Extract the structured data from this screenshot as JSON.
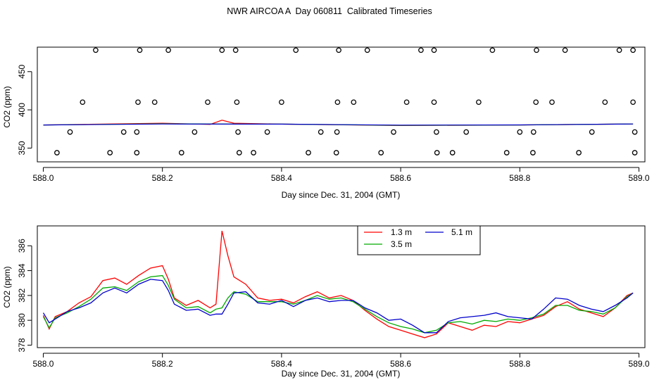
{
  "title": "NWR AIRCOA A  Day 060811  Calibrated Timeseries",
  "chart_data": [
    {
      "type": "scatter",
      "xlabel": "Day since Dec. 31, 2004 (GMT)",
      "ylabel": "CO2 (ppm)",
      "xlim": [
        587.99,
        589.01
      ],
      "ylim": [
        332,
        482
      ],
      "xticks": [
        588.0,
        588.2,
        588.4,
        588.6,
        588.8,
        589.0
      ],
      "xtick_labels": [
        "588.0",
        "588.2",
        "588.4",
        "588.6",
        "588.8",
        "589.0"
      ],
      "yticks": [
        350,
        400,
        450
      ],
      "ytick_labels": [
        "350",
        "400",
        "450"
      ],
      "calibration_points": {
        "x": [
          588.088,
          588.162,
          588.21,
          588.3,
          588.323,
          588.424,
          588.496,
          588.544,
          588.634,
          588.656,
          588.754,
          588.828,
          588.876,
          588.967,
          588.99,
          588.066,
          588.159,
          588.187,
          588.276,
          588.325,
          588.4,
          588.494,
          588.521,
          588.61,
          588.656,
          588.731,
          588.827,
          588.854,
          588.943,
          588.99,
          588.045,
          588.135,
          588.157,
          588.254,
          588.327,
          588.376,
          588.466,
          588.493,
          588.588,
          588.66,
          588.71,
          588.8,
          588.823,
          588.921,
          588.993,
          588.023,
          588.112,
          588.157,
          588.232,
          588.329,
          588.353,
          588.445,
          588.492,
          588.567,
          588.661,
          588.687,
          588.778,
          588.822,
          588.899,
          588.993
        ],
        "y": [
          478,
          478,
          478,
          478,
          478,
          478,
          478,
          478,
          478,
          478,
          478,
          478,
          478,
          478,
          478,
          410,
          410,
          410,
          410,
          410,
          410,
          410,
          410,
          410,
          410,
          410,
          410,
          410,
          410,
          410,
          371,
          371,
          371,
          371,
          371,
          371,
          371,
          371,
          371,
          371,
          371,
          371,
          371,
          371,
          371,
          344,
          344,
          344,
          344,
          344,
          344,
          344,
          344,
          344,
          344,
          344,
          344,
          344,
          344,
          344
        ]
      },
      "series": [
        {
          "name": "1.3 m",
          "color": "#ff0000",
          "x": [
            588.0,
            588.2,
            588.28,
            588.3,
            588.32,
            588.4,
            588.6,
            588.8,
            588.99
          ],
          "y": [
            380.2,
            382.5,
            381.0,
            386.5,
            382.5,
            381.3,
            379.5,
            380.2,
            381.5
          ]
        },
        {
          "name": "3.5 m",
          "color": "#00aa00",
          "x": [
            588.0,
            588.2,
            588.4,
            588.6,
            588.8,
            588.99
          ],
          "y": [
            380.2,
            381.8,
            381.3,
            379.8,
            380.2,
            381.5
          ]
        },
        {
          "name": "5.1 m",
          "color": "#0000cc",
          "x": [
            588.0,
            588.2,
            588.4,
            588.6,
            588.8,
            588.99
          ],
          "y": [
            380.2,
            381.5,
            381.3,
            380.0,
            380.3,
            381.5
          ]
        }
      ]
    },
    {
      "type": "line",
      "xlabel": "Day since Dec. 31, 2004 (GMT)",
      "ylabel": "CO2 (ppm)",
      "xlim": [
        587.99,
        589.01
      ],
      "ylim": [
        377.8,
        387.6
      ],
      "xticks": [
        588.0,
        588.2,
        588.4,
        588.6,
        588.8,
        589.0
      ],
      "xtick_labels": [
        "588.0",
        "588.2",
        "588.4",
        "588.6",
        "588.8",
        "589.0"
      ],
      "yticks": [
        378,
        380,
        382,
        384,
        386
      ],
      "ytick_labels": [
        "378",
        "380",
        "382",
        "384",
        "386"
      ],
      "legend": {
        "position": "top-right",
        "entries": [
          "1.3 m",
          "3.5 m",
          "5.1 m"
        ]
      },
      "series": [
        {
          "name": "1.3 m",
          "color": "#ff0000",
          "points": [
            [
              588.0,
              380.4
            ],
            [
              588.01,
              379.3
            ],
            [
              588.02,
              380.3
            ],
            [
              588.04,
              380.7
            ],
            [
              588.06,
              381.4
            ],
            [
              588.08,
              381.9
            ],
            [
              588.1,
              383.2
            ],
            [
              588.12,
              383.4
            ],
            [
              588.14,
              382.9
            ],
            [
              588.16,
              383.6
            ],
            [
              588.18,
              384.2
            ],
            [
              588.2,
              384.4
            ],
            [
              588.21,
              383.3
            ],
            [
              588.22,
              381.8
            ],
            [
              588.24,
              381.2
            ],
            [
              588.26,
              381.6
            ],
            [
              588.28,
              381.0
            ],
            [
              588.29,
              381.3
            ],
            [
              588.3,
              387.2
            ],
            [
              588.31,
              385.2
            ],
            [
              588.32,
              383.5
            ],
            [
              588.34,
              382.9
            ],
            [
              588.36,
              381.8
            ],
            [
              588.38,
              381.6
            ],
            [
              588.4,
              381.7
            ],
            [
              588.42,
              381.4
            ],
            [
              588.44,
              381.9
            ],
            [
              588.46,
              382.3
            ],
            [
              588.48,
              381.8
            ],
            [
              588.5,
              382.0
            ],
            [
              588.52,
              381.6
            ],
            [
              588.54,
              380.8
            ],
            [
              588.56,
              380.1
            ],
            [
              588.58,
              379.5
            ],
            [
              588.6,
              379.2
            ],
            [
              588.62,
              378.9
            ],
            [
              588.64,
              378.6
            ],
            [
              588.66,
              378.9
            ],
            [
              588.68,
              379.8
            ],
            [
              588.7,
              379.5
            ],
            [
              588.72,
              379.2
            ],
            [
              588.74,
              379.6
            ],
            [
              588.76,
              379.5
            ],
            [
              588.78,
              379.9
            ],
            [
              588.8,
              379.8
            ],
            [
              588.82,
              380.1
            ],
            [
              588.84,
              380.4
            ],
            [
              588.86,
              381.1
            ],
            [
              588.88,
              381.5
            ],
            [
              588.9,
              380.9
            ],
            [
              588.92,
              380.6
            ],
            [
              588.94,
              380.3
            ],
            [
              588.96,
              381.0
            ],
            [
              588.98,
              382.0
            ],
            [
              588.99,
              382.2
            ]
          ]
        },
        {
          "name": "3.5 m",
          "color": "#00aa00",
          "points": [
            [
              588.0,
              380.3
            ],
            [
              588.01,
              379.4
            ],
            [
              588.02,
              380.2
            ],
            [
              588.04,
              380.6
            ],
            [
              588.06,
              381.1
            ],
            [
              588.08,
              381.7
            ],
            [
              588.1,
              382.6
            ],
            [
              588.12,
              382.7
            ],
            [
              588.14,
              382.4
            ],
            [
              588.16,
              383.1
            ],
            [
              588.18,
              383.5
            ],
            [
              588.2,
              383.6
            ],
            [
              588.21,
              382.8
            ],
            [
              588.22,
              381.7
            ],
            [
              588.24,
              381.0
            ],
            [
              588.26,
              381.1
            ],
            [
              588.28,
              380.6
            ],
            [
              588.29,
              380.9
            ],
            [
              588.3,
              381.0
            ],
            [
              588.31,
              381.8
            ],
            [
              588.32,
              382.3
            ],
            [
              588.34,
              382.1
            ],
            [
              588.36,
              381.5
            ],
            [
              588.38,
              381.5
            ],
            [
              588.4,
              381.5
            ],
            [
              588.42,
              381.3
            ],
            [
              588.44,
              381.6
            ],
            [
              588.46,
              382.0
            ],
            [
              588.48,
              381.7
            ],
            [
              588.5,
              381.8
            ],
            [
              588.52,
              381.5
            ],
            [
              588.54,
              380.9
            ],
            [
              588.56,
              380.3
            ],
            [
              588.58,
              379.8
            ],
            [
              588.6,
              379.5
            ],
            [
              588.62,
              379.3
            ],
            [
              588.64,
              379.0
            ],
            [
              588.66,
              379.2
            ],
            [
              588.68,
              379.8
            ],
            [
              588.7,
              379.9
            ],
            [
              588.72,
              379.7
            ],
            [
              588.74,
              380.0
            ],
            [
              588.76,
              379.9
            ],
            [
              588.78,
              380.1
            ],
            [
              588.8,
              380.0
            ],
            [
              588.82,
              380.2
            ],
            [
              588.84,
              380.5
            ],
            [
              588.86,
              381.2
            ],
            [
              588.88,
              381.2
            ],
            [
              588.9,
              380.8
            ],
            [
              588.92,
              380.7
            ],
            [
              588.94,
              380.5
            ],
            [
              588.96,
              381.0
            ],
            [
              588.98,
              381.9
            ],
            [
              588.99,
              382.2
            ]
          ]
        },
        {
          "name": "5.1 m",
          "color": "#0000cc",
          "points": [
            [
              588.0,
              380.6
            ],
            [
              588.01,
              379.8
            ],
            [
              588.02,
              380.1
            ],
            [
              588.04,
              380.7
            ],
            [
              588.06,
              381.0
            ],
            [
              588.08,
              381.4
            ],
            [
              588.1,
              382.2
            ],
            [
              588.12,
              382.6
            ],
            [
              588.14,
              382.2
            ],
            [
              588.16,
              382.9
            ],
            [
              588.18,
              383.3
            ],
            [
              588.2,
              383.2
            ],
            [
              588.21,
              382.4
            ],
            [
              588.22,
              381.3
            ],
            [
              588.24,
              380.8
            ],
            [
              588.26,
              380.9
            ],
            [
              588.28,
              380.4
            ],
            [
              588.29,
              380.5
            ],
            [
              588.3,
              380.5
            ],
            [
              588.31,
              381.3
            ],
            [
              588.32,
              382.2
            ],
            [
              588.34,
              382.3
            ],
            [
              588.36,
              381.4
            ],
            [
              588.38,
              381.3
            ],
            [
              588.4,
              381.6
            ],
            [
              588.42,
              381.1
            ],
            [
              588.44,
              381.6
            ],
            [
              588.46,
              381.8
            ],
            [
              588.48,
              381.5
            ],
            [
              588.5,
              381.6
            ],
            [
              588.52,
              381.6
            ],
            [
              588.54,
              381.0
            ],
            [
              588.56,
              380.6
            ],
            [
              588.58,
              380.0
            ],
            [
              588.6,
              380.1
            ],
            [
              588.62,
              379.6
            ],
            [
              588.64,
              379.0
            ],
            [
              588.66,
              379.0
            ],
            [
              588.68,
              379.9
            ],
            [
              588.7,
              380.2
            ],
            [
              588.72,
              380.3
            ],
            [
              588.74,
              380.4
            ],
            [
              588.76,
              380.6
            ],
            [
              588.78,
              380.3
            ],
            [
              588.8,
              380.2
            ],
            [
              588.82,
              380.1
            ],
            [
              588.84,
              380.9
            ],
            [
              588.86,
              381.8
            ],
            [
              588.88,
              381.7
            ],
            [
              588.9,
              381.2
            ],
            [
              588.92,
              380.9
            ],
            [
              588.94,
              380.7
            ],
            [
              588.96,
              381.2
            ],
            [
              588.98,
              381.8
            ],
            [
              588.99,
              382.2
            ]
          ]
        }
      ]
    }
  ]
}
